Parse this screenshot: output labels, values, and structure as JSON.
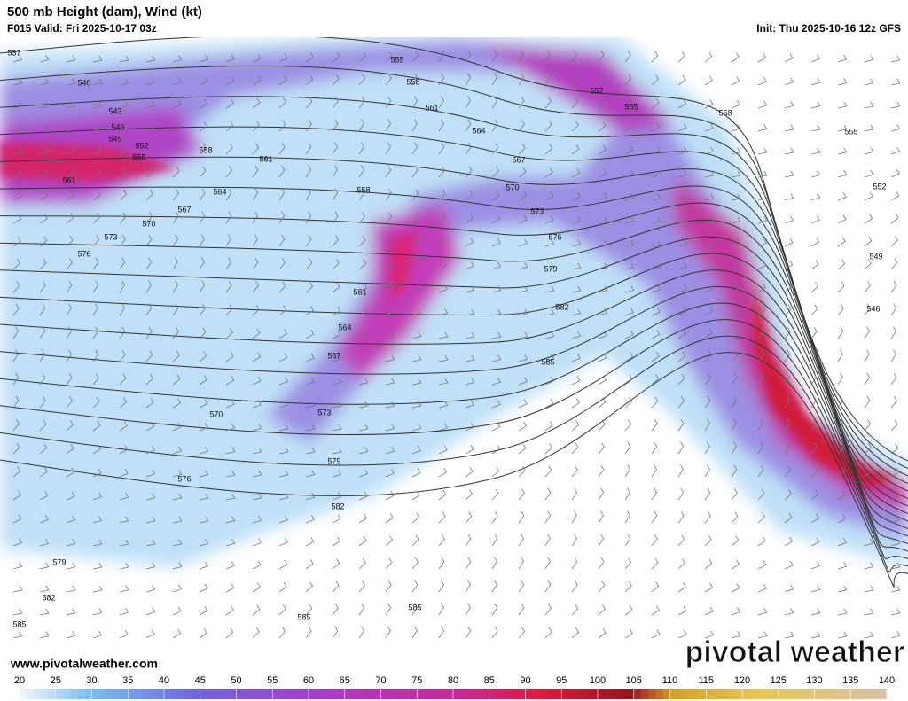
{
  "header": {
    "title": "500 mb Height (dam), Wind (kt)",
    "valid": "F015 Valid: Fri 2025-10-17 03z",
    "init": "Init: Thu 2025-10-16 12z GFS"
  },
  "contour_labels": [
    537,
    540,
    543,
    546,
    549,
    552,
    555,
    558,
    561,
    564,
    567,
    570,
    573,
    576,
    561,
    558,
    555,
    558,
    561,
    564,
    567,
    570,
    573,
    576,
    579,
    582,
    585,
    552,
    555,
    558,
    555,
    552,
    549,
    546,
    561,
    564,
    567,
    570,
    573,
    576,
    579,
    582,
    579,
    582,
    585,
    585,
    585
  ],
  "footer": {
    "website": "www.pivotalweather.com",
    "watermark": "pivotal weather"
  },
  "colorbar": {
    "ticks": [
      20,
      25,
      30,
      35,
      40,
      45,
      50,
      55,
      60,
      65,
      70,
      75,
      80,
      85,
      90,
      95,
      100,
      105,
      110,
      115,
      120,
      125,
      130,
      135,
      140
    ]
  }
}
